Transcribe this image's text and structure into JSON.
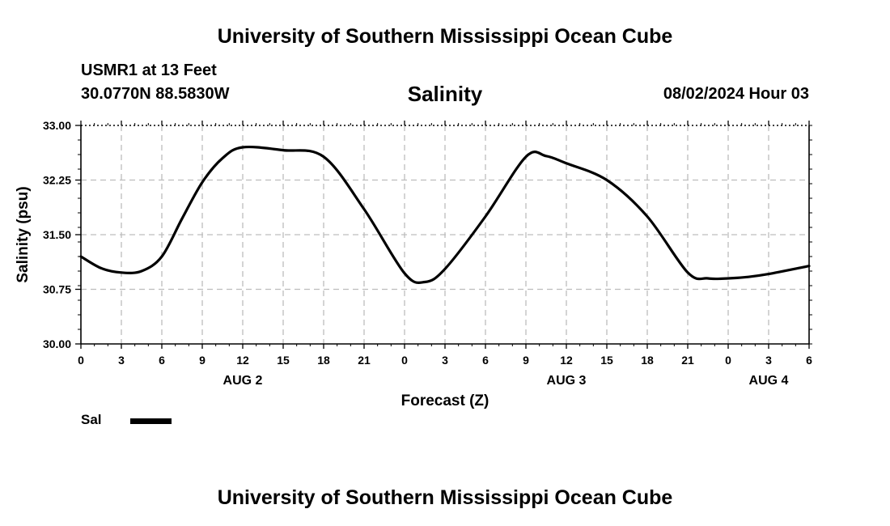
{
  "header": {
    "title": "University of Southern Mississippi Ocean Cube",
    "station": "USMR1 at 13 Feet",
    "coordinates": "30.0770N  88.5830W",
    "chart_title": "Salinity",
    "datetime": "08/02/2024 Hour 03"
  },
  "legend": {
    "label": "Sal",
    "color": "#000000"
  },
  "footer": {
    "title": "University of Southern Mississippi Ocean Cube"
  },
  "chart_data": {
    "type": "line",
    "title": "Salinity",
    "xlabel": "Forecast (Z)",
    "ylabel": "Salinity (psu)",
    "ylim": [
      30.0,
      33.0
    ],
    "yticks": [
      "30.00",
      "30.75",
      "31.50",
      "32.25",
      "33.00"
    ],
    "xlim": [
      0,
      54
    ],
    "x_tick_labels": [
      "0",
      "3",
      "6",
      "9",
      "12",
      "15",
      "18",
      "21",
      "0",
      "3",
      "6",
      "9",
      "12",
      "15",
      "18",
      "21",
      "0",
      "3",
      "6"
    ],
    "date_labels": [
      {
        "label": "AUG 2",
        "hour": 12
      },
      {
        "label": "AUG 3",
        "hour": 36
      },
      {
        "label": "AUG 4",
        "hour": 51
      }
    ],
    "grid": true,
    "series": [
      {
        "name": "Sal",
        "color": "#000000",
        "x": [
          0,
          1.5,
          3,
          4.5,
          6,
          7.5,
          9,
          10.5,
          12,
          15,
          18,
          21,
          24,
          25.5,
          27,
          30,
          33,
          34.5,
          36,
          39,
          42,
          45,
          46.5,
          48,
          49.5,
          51,
          54
        ],
        "y": [
          31.2,
          31.04,
          30.98,
          31.0,
          31.2,
          31.72,
          32.22,
          32.55,
          32.7,
          32.66,
          32.57,
          31.85,
          30.97,
          30.85,
          31.03,
          31.75,
          32.57,
          32.58,
          32.48,
          32.25,
          31.75,
          30.98,
          30.9,
          30.9,
          30.92,
          30.96,
          31.07
        ]
      }
    ]
  }
}
